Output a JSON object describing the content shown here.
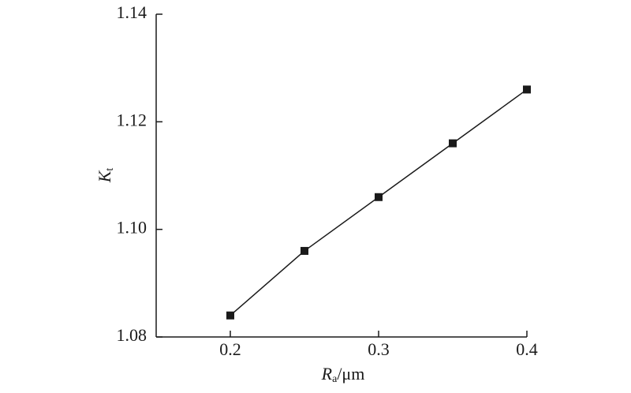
{
  "chart_data": {
    "type": "line",
    "x": [
      0.2,
      0.25,
      0.3,
      0.35,
      0.4
    ],
    "series": [
      {
        "color": "#1a1a1a",
        "values": [
          1.084,
          1.096,
          1.106,
          1.116,
          1.126
        ]
      }
    ],
    "xlim": [
      0.15,
      0.4
    ],
    "xticks": [
      0.2,
      0.3,
      0.4
    ],
    "ylim": [
      1.08,
      1.14
    ],
    "yticks": [
      1.08,
      {
        "value": 1.1,
        "label": "1.10"
      },
      1.12,
      1.14
    ],
    "xlabel": {
      "symbol": "R",
      "subscript": "a",
      "unit": "/μm"
    },
    "ylabel": {
      "symbol": "K",
      "subscript": "t"
    },
    "grid": false
  }
}
